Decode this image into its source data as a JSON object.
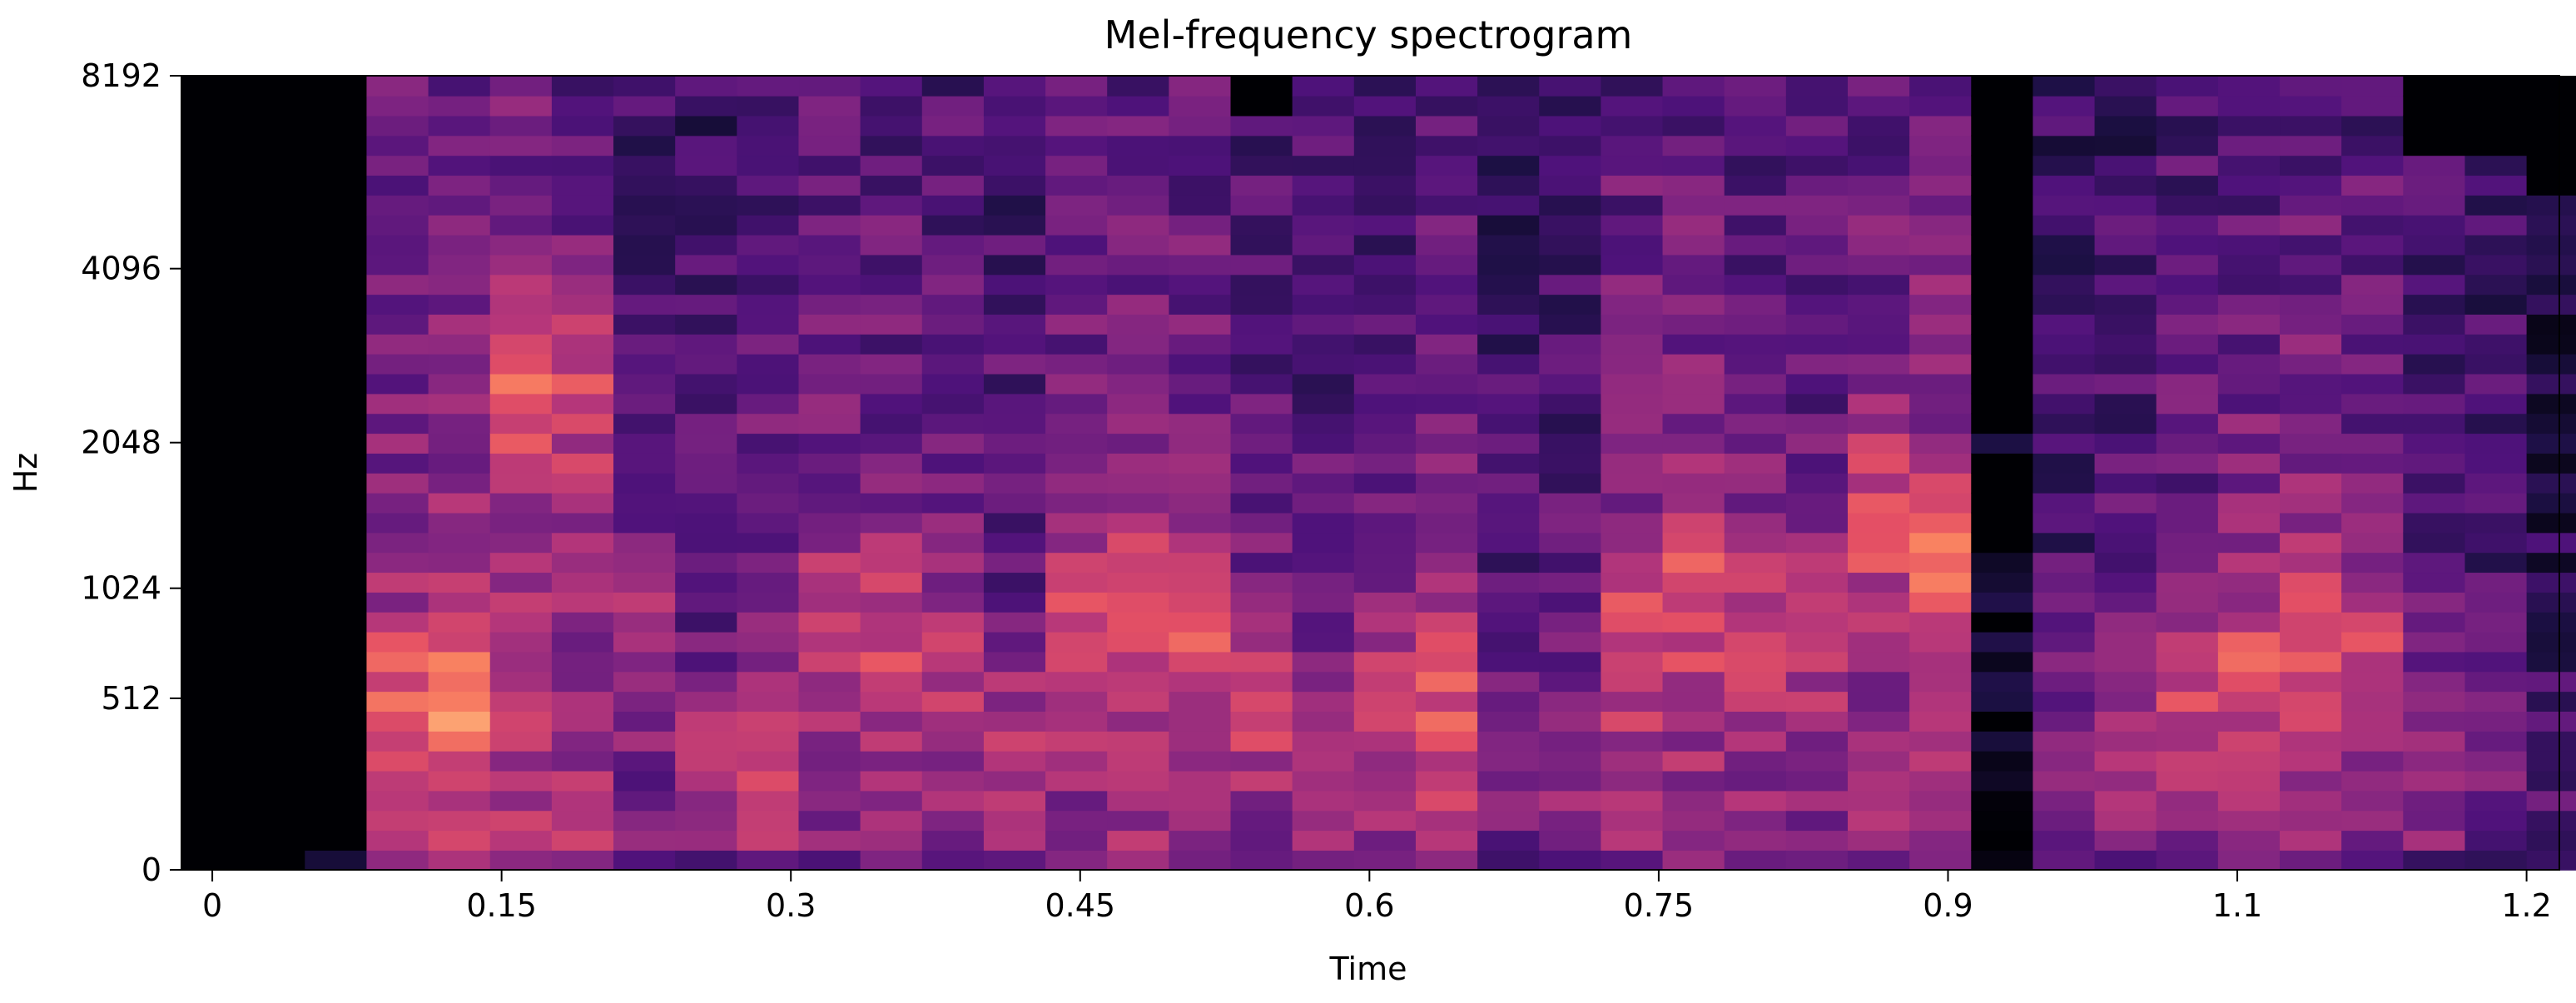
{
  "chart_data": {
    "type": "heatmap",
    "title": "Mel-frequency spectrogram",
    "xlabel": "Time",
    "ylabel": "Hz",
    "x_ticks": [
      {
        "value": 0,
        "label": "0"
      },
      {
        "value": 0.15,
        "label": "0.15"
      },
      {
        "value": 0.3,
        "label": "0.3"
      },
      {
        "value": 0.45,
        "label": "0.45"
      },
      {
        "value": 0.6,
        "label": "0.6"
      },
      {
        "value": 0.75,
        "label": "0.75"
      },
      {
        "value": 0.9,
        "label": "0.9"
      },
      {
        "value": 1.05,
        "label": "1.05"
      },
      {
        "value": 1.2,
        "label": "1.2"
      }
    ],
    "x_tick_labels_shown": [
      "0",
      "0.15",
      "0.3",
      "0.45",
      "0.6",
      "0.75",
      "0.9",
      "1.1",
      "1.2"
    ],
    "y_ticks": [
      {
        "value": 0,
        "label": "0"
      },
      {
        "value": 512,
        "label": "512"
      },
      {
        "value": 1024,
        "label": "1024"
      },
      {
        "value": 2048,
        "label": "2048"
      },
      {
        "value": 4096,
        "label": "4096"
      },
      {
        "value": 8192,
        "label": "8192"
      }
    ],
    "xlim": [
      -0.016,
      1.217
    ],
    "ylim": [
      0,
      8192
    ],
    "y_scale": "mel",
    "n_frames": 39,
    "n_mels": 40,
    "colormap": "magma",
    "colormap_stops": [
      "#000004",
      "#1c1044",
      "#4f127b",
      "#812581",
      "#b5367a",
      "#e55064",
      "#fb8761",
      "#fec287",
      "#fcfdbf"
    ],
    "frame_time_step": 0.032,
    "frame_loudness": [
      0.02,
      0.05,
      0.08,
      0.72,
      0.8,
      0.8,
      0.75,
      0.55,
      0.5,
      0.62,
      0.65,
      0.66,
      0.6,
      0.55,
      0.68,
      0.75,
      0.7,
      0.6,
      0.55,
      0.6,
      0.7,
      0.45,
      0.5,
      0.7,
      0.72,
      0.66,
      0.62,
      0.72,
      0.78,
      0.05,
      0.45,
      0.5,
      0.62,
      0.68,
      0.7,
      0.65,
      0.5,
      0.45,
      0.3
    ],
    "frame_top_cut": [
      0.0,
      0.0,
      0.0,
      1.0,
      1.0,
      1.0,
      1.0,
      1.0,
      1.0,
      1.0,
      1.0,
      1.0,
      1.0,
      1.0,
      1.0,
      1.0,
      1.0,
      0.95,
      1.0,
      1.0,
      1.0,
      1.0,
      1.0,
      1.0,
      1.0,
      1.0,
      1.0,
      1.0,
      1.0,
      0.55,
      1.0,
      1.0,
      1.0,
      1.0,
      1.0,
      1.0,
      0.92,
      0.9,
      0.85
    ],
    "frame_formant": [
      0.1,
      0.1,
      0.1,
      0.2,
      0.2,
      0.62,
      0.62,
      0.3,
      0.15,
      0.15,
      0.3,
      0.3,
      0.25,
      0.15,
      0.3,
      0.35,
      0.3,
      0.2,
      0.15,
      0.2,
      0.2,
      0.15,
      0.15,
      0.3,
      0.35,
      0.3,
      0.3,
      0.45,
      0.4,
      0.1,
      0.15,
      0.15,
      0.2,
      0.25,
      0.3,
      0.25,
      0.15,
      0.15,
      0.15
    ]
  }
}
